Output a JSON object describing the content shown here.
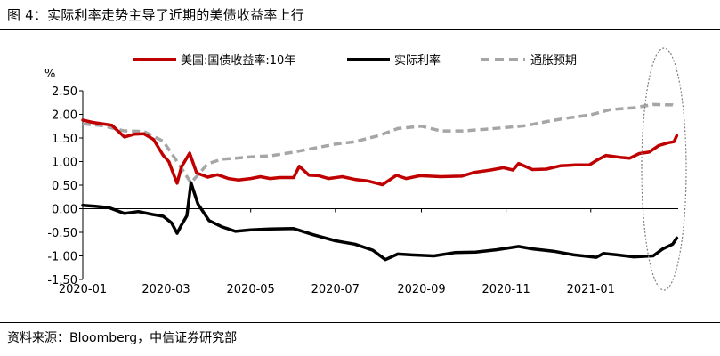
{
  "title": "图 4：实际利率走势主导了近期的美债收益率上行",
  "source": "资料来源：Bloomberg，中信证券研究部",
  "chart_data": {
    "type": "line",
    "ylabel": "%",
    "ylim": [
      -1.5,
      2.5
    ],
    "yticks": [
      "2.50",
      "2.00",
      "1.50",
      "1.00",
      "0.50",
      "0.00",
      "-0.50",
      "-1.00",
      "-1.50"
    ],
    "ytick_values": [
      2.5,
      2.0,
      1.5,
      1.0,
      0.5,
      0.0,
      -0.5,
      -1.0,
      -1.5
    ],
    "xticks": [
      "2020-01",
      "2020-03",
      "2020-05",
      "2020-07",
      "2020-09",
      "2020-11",
      "2021-01"
    ],
    "xtick_values": [
      "2020-01-01",
      "2020-03-01",
      "2020-05-01",
      "2020-07-01",
      "2020-09-01",
      "2020-11-01",
      "2021-01-01"
    ],
    "xlim": [
      "2020-01-01",
      "2021-03-05"
    ],
    "legend_position": "top",
    "annotation": "dotted ellipse highlighting the most recent period",
    "series": [
      {
        "name": "美国:国债收益率:10年",
        "color": "#C00000",
        "style": "solid",
        "points": [
          [
            "2020-01-01",
            1.88
          ],
          [
            "2020-01-08",
            1.83
          ],
          [
            "2020-01-15",
            1.8
          ],
          [
            "2020-01-22",
            1.77
          ],
          [
            "2020-01-31",
            1.52
          ],
          [
            "2020-02-07",
            1.58
          ],
          [
            "2020-02-14",
            1.59
          ],
          [
            "2020-02-21",
            1.47
          ],
          [
            "2020-02-28",
            1.13
          ],
          [
            "2020-03-03",
            1.0
          ],
          [
            "2020-03-06",
            0.76
          ],
          [
            "2020-03-09",
            0.54
          ],
          [
            "2020-03-12",
            0.88
          ],
          [
            "2020-03-18",
            1.18
          ],
          [
            "2020-03-23",
            0.76
          ],
          [
            "2020-03-31",
            0.67
          ],
          [
            "2020-04-07",
            0.72
          ],
          [
            "2020-04-15",
            0.64
          ],
          [
            "2020-04-22",
            0.61
          ],
          [
            "2020-05-01",
            0.64
          ],
          [
            "2020-05-08",
            0.68
          ],
          [
            "2020-05-15",
            0.64
          ],
          [
            "2020-05-22",
            0.66
          ],
          [
            "2020-06-01",
            0.66
          ],
          [
            "2020-06-05",
            0.9
          ],
          [
            "2020-06-12",
            0.71
          ],
          [
            "2020-06-19",
            0.7
          ],
          [
            "2020-06-26",
            0.64
          ],
          [
            "2020-07-06",
            0.68
          ],
          [
            "2020-07-15",
            0.62
          ],
          [
            "2020-07-24",
            0.59
          ],
          [
            "2020-08-04",
            0.51
          ],
          [
            "2020-08-14",
            0.71
          ],
          [
            "2020-08-21",
            0.64
          ],
          [
            "2020-08-31",
            0.7
          ],
          [
            "2020-09-15",
            0.68
          ],
          [
            "2020-09-30",
            0.69
          ],
          [
            "2020-10-09",
            0.77
          ],
          [
            "2020-10-21",
            0.82
          ],
          [
            "2020-10-30",
            0.87
          ],
          [
            "2020-11-06",
            0.82
          ],
          [
            "2020-11-10",
            0.96
          ],
          [
            "2020-11-20",
            0.83
          ],
          [
            "2020-11-30",
            0.84
          ],
          [
            "2020-12-10",
            0.91
          ],
          [
            "2020-12-21",
            0.93
          ],
          [
            "2020-12-31",
            0.93
          ],
          [
            "2021-01-06",
            1.04
          ],
          [
            "2021-01-12",
            1.13
          ],
          [
            "2021-01-22",
            1.09
          ],
          [
            "2021-01-29",
            1.07
          ],
          [
            "2021-02-05",
            1.17
          ],
          [
            "2021-02-12",
            1.2
          ],
          [
            "2021-02-19",
            1.34
          ],
          [
            "2021-02-26",
            1.4
          ],
          [
            "2021-03-02",
            1.42
          ],
          [
            "2021-03-04",
            1.55
          ]
        ]
      },
      {
        "name": "实际利率",
        "color": "#000000",
        "style": "solid",
        "points": [
          [
            "2020-01-01",
            0.07
          ],
          [
            "2020-01-10",
            0.05
          ],
          [
            "2020-01-20",
            0.02
          ],
          [
            "2020-01-31",
            -0.1
          ],
          [
            "2020-02-10",
            -0.06
          ],
          [
            "2020-02-20",
            -0.12
          ],
          [
            "2020-02-28",
            -0.16
          ],
          [
            "2020-03-05",
            -0.3
          ],
          [
            "2020-03-09",
            -0.52
          ],
          [
            "2020-03-12",
            -0.35
          ],
          [
            "2020-03-16",
            -0.15
          ],
          [
            "2020-03-19",
            0.55
          ],
          [
            "2020-03-24",
            0.1
          ],
          [
            "2020-04-01",
            -0.25
          ],
          [
            "2020-04-10",
            -0.38
          ],
          [
            "2020-04-20",
            -0.48
          ],
          [
            "2020-05-01",
            -0.45
          ],
          [
            "2020-05-15",
            -0.43
          ],
          [
            "2020-06-01",
            -0.42
          ],
          [
            "2020-06-15",
            -0.55
          ],
          [
            "2020-07-01",
            -0.68
          ],
          [
            "2020-07-15",
            -0.75
          ],
          [
            "2020-07-28",
            -0.88
          ],
          [
            "2020-08-06",
            -1.08
          ],
          [
            "2020-08-15",
            -0.96
          ],
          [
            "2020-08-25",
            -0.98
          ],
          [
            "2020-09-10",
            -1.0
          ],
          [
            "2020-09-25",
            -0.93
          ],
          [
            "2020-10-10",
            -0.92
          ],
          [
            "2020-10-25",
            -0.87
          ],
          [
            "2020-11-10",
            -0.8
          ],
          [
            "2020-11-20",
            -0.85
          ],
          [
            "2020-12-05",
            -0.9
          ],
          [
            "2020-12-20",
            -0.98
          ],
          [
            "2021-01-05",
            -1.03
          ],
          [
            "2021-01-10",
            -0.95
          ],
          [
            "2021-01-20",
            -0.98
          ],
          [
            "2021-02-01",
            -1.02
          ],
          [
            "2021-02-15",
            -1.0
          ],
          [
            "2021-02-22",
            -0.85
          ],
          [
            "2021-03-01",
            -0.75
          ],
          [
            "2021-03-04",
            -0.62
          ]
        ]
      },
      {
        "name": "通胀预期",
        "color": "#A6A6A6",
        "style": "dashed",
        "points": [
          [
            "2020-01-01",
            1.8
          ],
          [
            "2020-01-15",
            1.76
          ],
          [
            "2020-01-31",
            1.65
          ],
          [
            "2020-02-14",
            1.64
          ],
          [
            "2020-02-28",
            1.43
          ],
          [
            "2020-03-09",
            1.0
          ],
          [
            "2020-03-19",
            0.55
          ],
          [
            "2020-03-31",
            0.95
          ],
          [
            "2020-04-10",
            1.05
          ],
          [
            "2020-04-20",
            1.07
          ],
          [
            "2020-05-01",
            1.1
          ],
          [
            "2020-05-15",
            1.12
          ],
          [
            "2020-06-01",
            1.2
          ],
          [
            "2020-06-15",
            1.28
          ],
          [
            "2020-07-01",
            1.37
          ],
          [
            "2020-07-15",
            1.42
          ],
          [
            "2020-08-01",
            1.55
          ],
          [
            "2020-08-15",
            1.7
          ],
          [
            "2020-09-01",
            1.75
          ],
          [
            "2020-09-15",
            1.65
          ],
          [
            "2020-10-01",
            1.65
          ],
          [
            "2020-10-15",
            1.68
          ],
          [
            "2020-11-01",
            1.72
          ],
          [
            "2020-11-15",
            1.76
          ],
          [
            "2020-12-01",
            1.85
          ],
          [
            "2020-12-15",
            1.92
          ],
          [
            "2021-01-01",
            1.99
          ],
          [
            "2021-01-15",
            2.1
          ],
          [
            "2021-02-01",
            2.14
          ],
          [
            "2021-02-15",
            2.21
          ],
          [
            "2021-03-01",
            2.2
          ],
          [
            "2021-03-04",
            2.16
          ]
        ]
      }
    ]
  }
}
